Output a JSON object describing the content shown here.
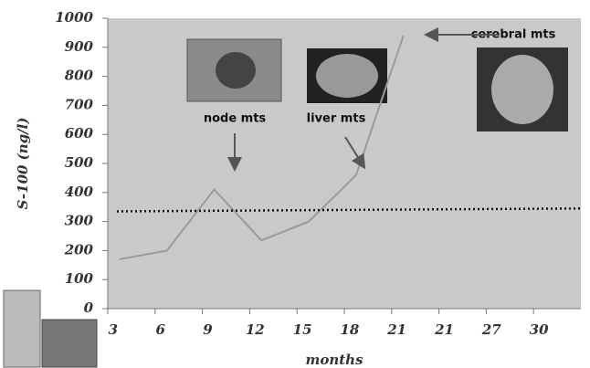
{
  "chart_data": {
    "type": "line",
    "x_label": "months",
    "y_label": "S-100 (ng/l)",
    "categories": [
      "3",
      "6",
      "9",
      "12",
      "15",
      "18",
      "21",
      "21",
      "27",
      "30"
    ],
    "values": [
      170,
      200,
      410,
      235,
      300,
      460,
      940,
      null,
      null,
      null
    ],
    "color": "#9a9a9a",
    "reference_line": {
      "values": [
        335,
        345
      ],
      "color": "#111111",
      "style": "dotted"
    },
    "ylim": [
      0,
      1000
    ],
    "yticks": [
      0,
      100,
      200,
      300,
      400,
      500,
      600,
      700,
      800,
      900,
      1000
    ],
    "plot_background": "#c9c9c9",
    "annotations": [
      "node mts",
      "liver mts",
      "cerebral mts"
    ]
  }
}
